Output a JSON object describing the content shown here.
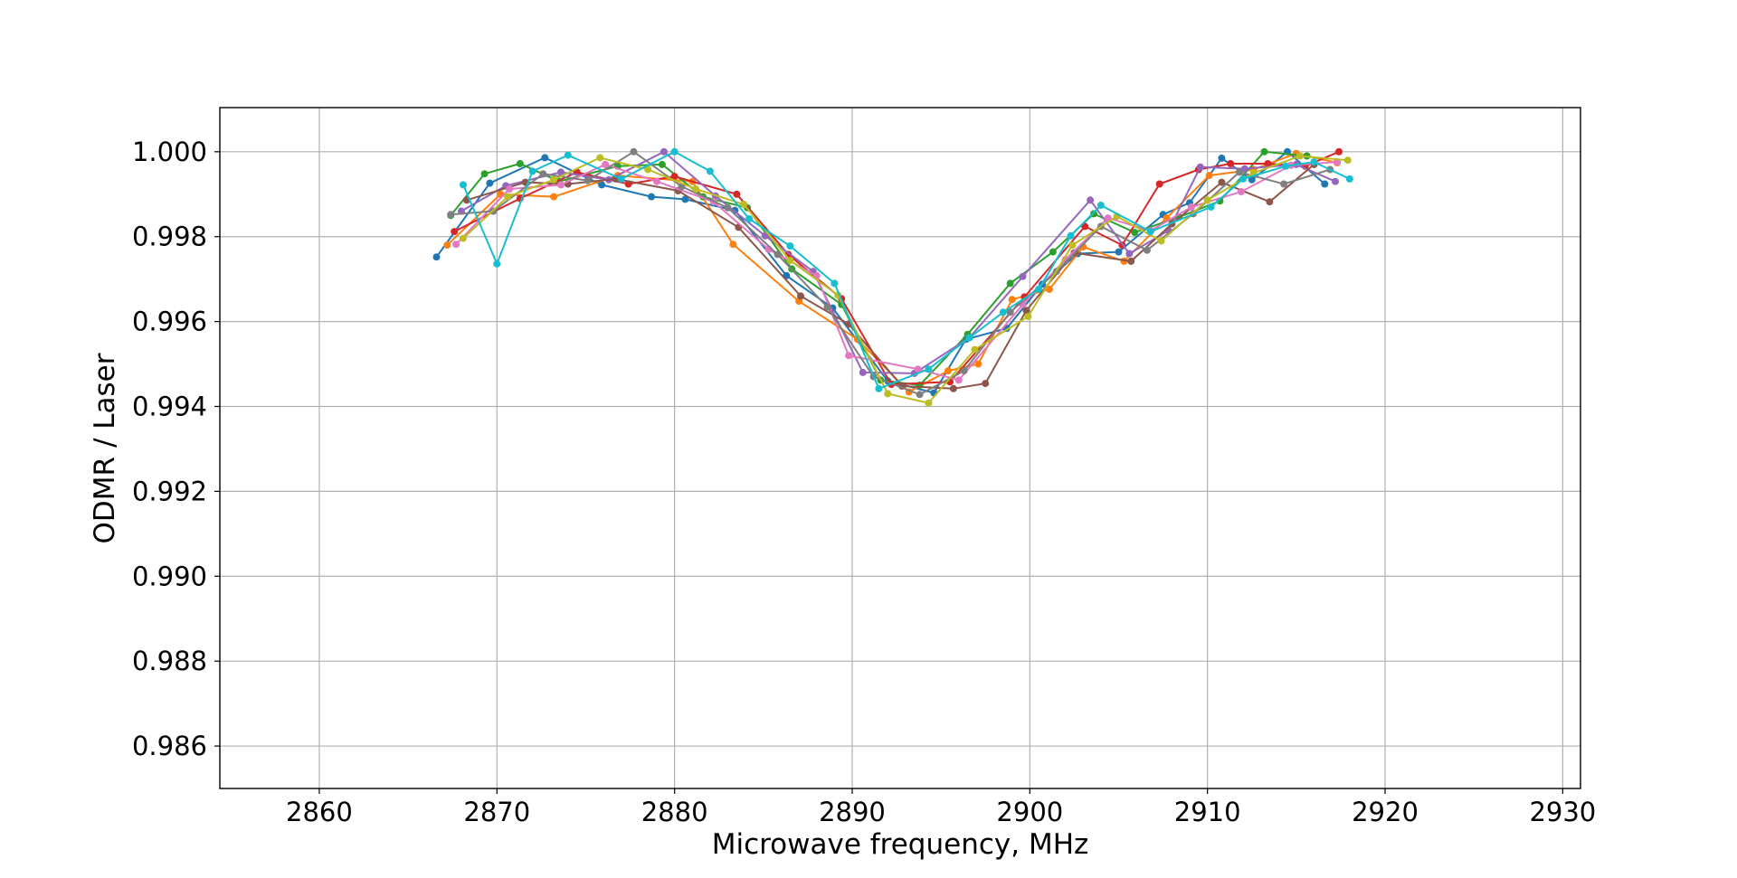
{
  "chart_data": {
    "type": "line",
    "title": "",
    "xlabel": "Microwave frequency, MHz",
    "ylabel": "ODMR / Laser",
    "xlim": [
      2854.4,
      2931
    ],
    "ylim": [
      0.985,
      1.00104
    ],
    "xticks": [
      2860,
      2870,
      2880,
      2890,
      2900,
      2910,
      2920,
      2930
    ],
    "yticks": [
      0.986,
      0.988,
      0.99,
      0.992,
      0.994,
      0.996,
      0.998,
      1.0
    ],
    "xtick_labels": [
      "2860",
      "2870",
      "2880",
      "2890",
      "2900",
      "2910",
      "2920",
      "2930"
    ],
    "ytick_labels": [
      "0.986",
      "0.988",
      "0.990",
      "0.992",
      "0.994",
      "0.996",
      "0.998",
      "1.000"
    ],
    "grid": true,
    "legend": "none",
    "series": [
      {
        "color": "#1f77b4",
        "x": [
          2866.6,
          2869.6,
          2872.7,
          2875.9,
          2878.7,
          2880.6,
          2883.4,
          2886.3,
          2888.9,
          2892.0,
          2894.6,
          2896.4,
          2898.7,
          2900.7,
          2902.7,
          2905.0,
          2907.5,
          2909.0,
          2910.8,
          2912.5,
          2914.5,
          2916.6
        ],
        "y": [
          0.99752,
          0.99926,
          0.99986,
          0.99922,
          0.99894,
          0.99888,
          0.99862,
          0.99708,
          0.99632,
          0.9946,
          0.99432,
          0.99558,
          0.99584,
          0.99688,
          0.9976,
          0.99764,
          0.99852,
          0.9988,
          0.99985,
          0.99934,
          1.0,
          0.99924
        ]
      },
      {
        "color": "#ff7f0e",
        "x": [
          2867.2,
          2870.2,
          2873.2,
          2876.8,
          2881.0,
          2883.3,
          2887.0,
          2890.3,
          2893.2,
          2895.4,
          2897.1,
          2899.0,
          2901.1,
          2903.0,
          2905.3,
          2907.7,
          2910.1,
          2912.6,
          2915.0,
          2917.3
        ],
        "y": [
          0.9978,
          0.999,
          0.99894,
          0.99944,
          0.9993,
          0.99782,
          0.99648,
          0.99558,
          0.99434,
          0.99484,
          0.995,
          0.99652,
          0.99676,
          0.99776,
          0.99742,
          0.99844,
          0.99944,
          0.99958,
          0.99996,
          0.99974
        ]
      },
      {
        "color": "#2ca02c",
        "x": [
          2867.4,
          2869.3,
          2871.3,
          2873.5,
          2876.8,
          2879.3,
          2881.6,
          2884.1,
          2886.6,
          2889.4,
          2891.6,
          2893.8,
          2896.5,
          2898.9,
          2901.3,
          2903.6,
          2905.9,
          2908.4,
          2910.7,
          2913.2,
          2915.6
        ],
        "y": [
          0.9985,
          0.99948,
          0.99972,
          0.9993,
          0.99966,
          0.9997,
          0.99894,
          0.99868,
          0.99724,
          0.9964,
          0.99462,
          0.9945,
          0.9957,
          0.9969,
          0.99764,
          0.99854,
          0.9981,
          0.99846,
          0.99884,
          1.0,
          0.9999
        ]
      },
      {
        "color": "#d62728",
        "x": [
          2867.6,
          2871.3,
          2874.5,
          2877.4,
          2880.0,
          2883.5,
          2886.4,
          2889.4,
          2892.2,
          2895.5,
          2899.7,
          2903.1,
          2905.2,
          2907.3,
          2909.5,
          2911.3,
          2913.4,
          2915.5,
          2917.4
        ],
        "y": [
          0.99812,
          0.9989,
          0.99952,
          0.99924,
          0.99942,
          0.999,
          0.99758,
          0.99654,
          0.99452,
          0.99458,
          0.99658,
          0.99824,
          0.9978,
          0.99924,
          0.99958,
          0.99972,
          0.99972,
          0.99966,
          1.0
        ]
      },
      {
        "color": "#9467bd",
        "x": [
          2868.0,
          2870.5,
          2873.6,
          2876.3,
          2879.4,
          2882.3,
          2885.1,
          2887.8,
          2890.6,
          2893.5,
          2896.6,
          2899.6,
          2903.4,
          2905.6,
          2907.8,
          2909.6,
          2912.1,
          2915.0,
          2917.2
        ],
        "y": [
          0.9986,
          0.9992,
          0.99952,
          0.99934,
          1.0,
          0.99896,
          0.99802,
          0.99718,
          0.9948,
          0.99478,
          0.99562,
          0.99706,
          0.99886,
          0.9976,
          0.99814,
          0.99964,
          0.9996,
          0.9997,
          0.9993
        ]
      },
      {
        "color": "#8c564b",
        "x": [
          2868.3,
          2871.6,
          2874.0,
          2876.7,
          2880.2,
          2883.6,
          2887.1,
          2889.8,
          2892.8,
          2895.7,
          2897.5,
          2899.8,
          2902.5,
          2905.7,
          2908.0,
          2910.8,
          2913.5,
          2916.0
        ],
        "y": [
          0.99886,
          0.99928,
          0.99924,
          0.99936,
          0.99908,
          0.99822,
          0.9966,
          0.99594,
          0.99448,
          0.99442,
          0.99454,
          0.99626,
          0.99762,
          0.99742,
          0.9983,
          0.99928,
          0.99882,
          0.9997
        ]
      },
      {
        "color": "#e377c2",
        "x": [
          2867.7,
          2870.7,
          2873.6,
          2876.1,
          2879.0,
          2882.2,
          2885.3,
          2888.0,
          2889.8,
          2893.7,
          2896.0,
          2899.6,
          2902.0,
          2904.4,
          2906.8,
          2909.1,
          2911.9,
          2914.7,
          2917.3
        ],
        "y": [
          0.99782,
          0.99912,
          0.99922,
          0.9997,
          0.9993,
          0.99882,
          0.9977,
          0.99708,
          0.9952,
          0.99488,
          0.99462,
          0.9964,
          0.99746,
          0.99844,
          0.99814,
          0.9987,
          0.99906,
          0.99968,
          0.99976
        ]
      },
      {
        "color": "#7f7f7f",
        "x": [
          2867.4,
          2869.8,
          2872.6,
          2875.1,
          2877.7,
          2880.4,
          2883.0,
          2885.8,
          2888.6,
          2891.2,
          2893.8,
          2896.3,
          2898.9,
          2901.5,
          2904.0,
          2906.6,
          2909.2,
          2911.8,
          2914.3,
          2916.9
        ],
        "y": [
          0.99852,
          0.9986,
          0.99948,
          0.99932,
          1.0,
          0.99918,
          0.99868,
          0.99758,
          0.99634,
          0.9947,
          0.99428,
          0.99484,
          0.99622,
          0.99718,
          0.99824,
          0.99768,
          0.99854,
          0.99952,
          0.99924,
          0.99958
        ]
      },
      {
        "color": "#bcbd22",
        "x": [
          2868.1,
          2870.6,
          2873.2,
          2875.8,
          2878.5,
          2881.2,
          2883.9,
          2886.5,
          2889.2,
          2892.0,
          2894.3,
          2896.9,
          2899.9,
          2902.4,
          2904.9,
          2907.4,
          2910.0,
          2912.6,
          2915.2,
          2917.9
        ],
        "y": [
          0.99796,
          0.99894,
          0.99934,
          0.99986,
          0.99958,
          0.99912,
          0.99876,
          0.99744,
          0.99662,
          0.9943,
          0.99408,
          0.99534,
          0.99612,
          0.9978,
          0.99848,
          0.9979,
          0.99886,
          0.9995,
          0.9999,
          0.9998
        ]
      },
      {
        "color": "#17becf",
        "x": [
          2868.1,
          2870.0,
          2872.0,
          2874.0,
          2877.0,
          2880.0,
          2882.0,
          2884.2,
          2886.5,
          2889.0,
          2891.5,
          2894.3,
          2896.6,
          2898.5,
          2900.5,
          2902.3,
          2904.0,
          2906.8,
          2910.2,
          2912.0,
          2914.4,
          2916.0,
          2918.0
        ],
        "y": [
          0.99922,
          0.99736,
          0.99954,
          0.99992,
          0.99936,
          1.0,
          0.99954,
          0.99842,
          0.99778,
          0.9969,
          0.99442,
          0.99488,
          0.99562,
          0.99622,
          0.99676,
          0.99802,
          0.99874,
          0.99812,
          0.9987,
          0.99936,
          0.99966,
          0.99976,
          0.99936
        ]
      }
    ]
  }
}
